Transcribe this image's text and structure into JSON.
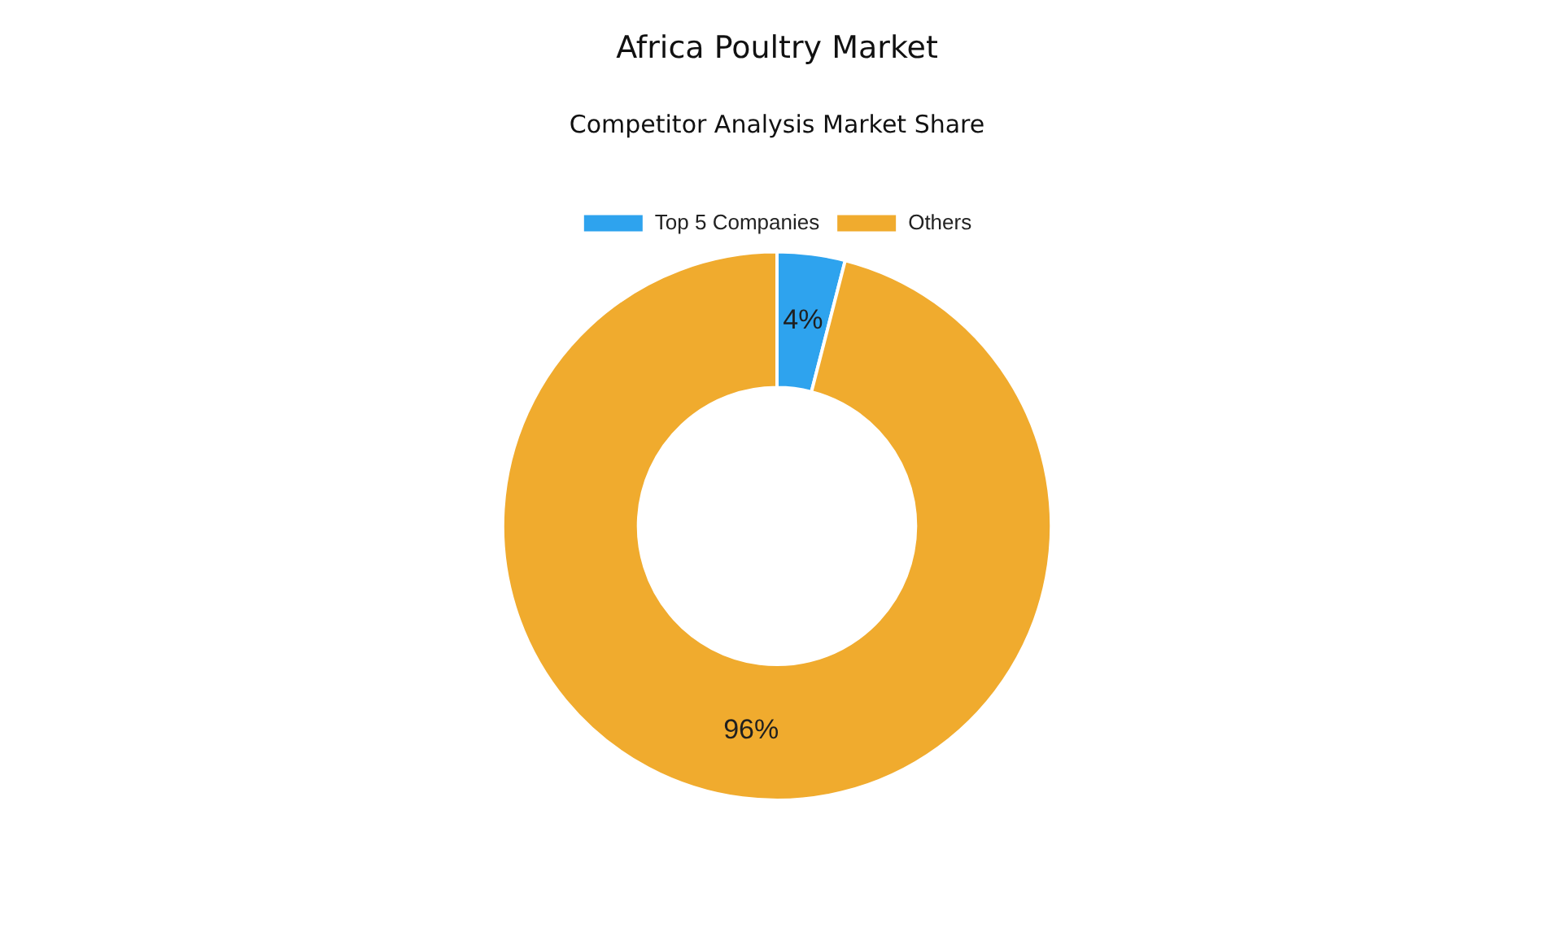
{
  "chart_data": {
    "type": "donut",
    "title": "Africa Poultry Market",
    "subtitle": "Competitor Analysis Market Share",
    "categories": [
      "Top 5 Companies",
      "Others"
    ],
    "values": [
      4,
      96
    ],
    "colors": [
      "#2ea3ee",
      "#f0ab2e"
    ],
    "value_labels": [
      "4%",
      "96%"
    ],
    "legend": "top"
  }
}
